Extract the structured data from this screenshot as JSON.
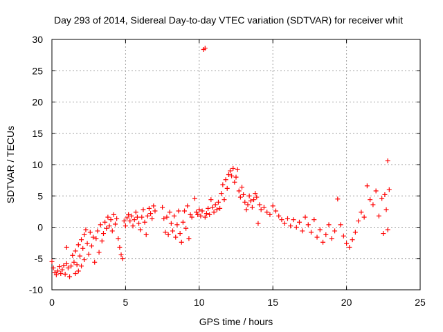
{
  "chart_data": {
    "type": "scatter",
    "title": "Day 293 of 2014, Sidereal Day-to-day VTEC variation (SDTVAR) for receiver whit",
    "xlabel": "GPS time / hours",
    "ylabel": "SDTVAR / TECUs",
    "xlim": [
      0,
      25
    ],
    "ylim": [
      -10,
      30
    ],
    "xticks": [
      "0",
      "5",
      "10",
      "15",
      "20",
      "25"
    ],
    "xtick_values": [
      0,
      5,
      10,
      15,
      20,
      25
    ],
    "yticks": [
      "-10",
      "-5",
      "0",
      "5",
      "10",
      "15",
      "20",
      "25",
      "30"
    ],
    "ytick_values": [
      -10,
      -5,
      0,
      5,
      10,
      15,
      20,
      25,
      30
    ],
    "grid": true,
    "marker": "plus",
    "color": "#ff0000",
    "series": [
      {
        "name": "SDTVAR",
        "points": [
          [
            0.0,
            -5.5
          ],
          [
            0.1,
            -6.5
          ],
          [
            0.2,
            -7.2
          ],
          [
            0.3,
            -7.6
          ],
          [
            0.4,
            -7.0
          ],
          [
            0.5,
            -6.3
          ],
          [
            0.6,
            -7.4
          ],
          [
            0.7,
            -6.8
          ],
          [
            0.8,
            -6.1
          ],
          [
            0.9,
            -7.5
          ],
          [
            1.0,
            -5.8
          ],
          [
            1.0,
            -3.2
          ],
          [
            1.1,
            -6.5
          ],
          [
            1.2,
            -7.9
          ],
          [
            1.3,
            -6.2
          ],
          [
            1.4,
            -4.5
          ],
          [
            1.5,
            -5.6
          ],
          [
            1.6,
            -7.4
          ],
          [
            1.6,
            -3.8
          ],
          [
            1.7,
            -6.0
          ],
          [
            1.8,
            -2.8
          ],
          [
            1.8,
            -7.0
          ],
          [
            1.9,
            -4.6
          ],
          [
            2.0,
            -2.0
          ],
          [
            2.0,
            -6.2
          ],
          [
            2.1,
            -3.4
          ],
          [
            2.2,
            -1.2
          ],
          [
            2.2,
            -5.2
          ],
          [
            2.3,
            -0.4
          ],
          [
            2.4,
            -2.6
          ],
          [
            2.5,
            -4.3
          ],
          [
            2.6,
            -0.8
          ],
          [
            2.7,
            -3.0
          ],
          [
            2.8,
            -1.6
          ],
          [
            2.9,
            -5.6
          ],
          [
            3.0,
            -1.8
          ],
          [
            3.1,
            -0.6
          ],
          [
            3.2,
            -4.0
          ],
          [
            3.3,
            0.4
          ],
          [
            3.4,
            -2.2
          ],
          [
            3.5,
            -1.0
          ],
          [
            3.6,
            0.8
          ],
          [
            3.7,
            -0.2
          ],
          [
            3.8,
            1.6
          ],
          [
            3.9,
            0.2
          ],
          [
            4.0,
            1.2
          ],
          [
            4.1,
            -0.6
          ],
          [
            4.2,
            2.0
          ],
          [
            4.3,
            0.5
          ],
          [
            4.4,
            1.4
          ],
          [
            4.5,
            -1.8
          ],
          [
            4.6,
            -3.2
          ],
          [
            4.7,
            -4.4
          ],
          [
            4.8,
            -5.0
          ],
          [
            4.9,
            1.0
          ],
          [
            5.0,
            0.2
          ],
          [
            5.1,
            1.5
          ],
          [
            5.2,
            2.0
          ],
          [
            5.3,
            1.0
          ],
          [
            5.4,
            1.8
          ],
          [
            5.5,
            0.2
          ],
          [
            5.6,
            1.2
          ],
          [
            5.7,
            2.4
          ],
          [
            5.8,
            1.6
          ],
          [
            5.9,
            0.6
          ],
          [
            6.0,
            -0.4
          ],
          [
            6.1,
            1.6
          ],
          [
            6.2,
            2.8
          ],
          [
            6.3,
            0.8
          ],
          [
            6.4,
            -1.2
          ],
          [
            6.5,
            1.8
          ],
          [
            6.6,
            3.0
          ],
          [
            6.7,
            2.2
          ],
          [
            6.8,
            1.4
          ],
          [
            6.9,
            3.4
          ],
          [
            7.0,
            2.6
          ],
          [
            7.5,
            3.2
          ],
          [
            7.6,
            1.4
          ],
          [
            7.7,
            -0.8
          ],
          [
            7.8,
            1.6
          ],
          [
            7.9,
            -1.2
          ],
          [
            8.0,
            2.4
          ],
          [
            8.1,
            0.6
          ],
          [
            8.2,
            -0.6
          ],
          [
            8.3,
            1.8
          ],
          [
            8.4,
            -1.6
          ],
          [
            8.5,
            0.4
          ],
          [
            8.6,
            2.6
          ],
          [
            8.7,
            -1.0
          ],
          [
            8.8,
            -2.4
          ],
          [
            8.9,
            0.8
          ],
          [
            9.0,
            2.6
          ],
          [
            9.1,
            -0.2
          ],
          [
            9.2,
            3.4
          ],
          [
            9.3,
            -1.8
          ],
          [
            9.4,
            2.0
          ],
          [
            9.5,
            1.6
          ],
          [
            9.7,
            4.6
          ],
          [
            9.8,
            2.4
          ],
          [
            9.9,
            2.0
          ],
          [
            10.0,
            2.8
          ],
          [
            10.1,
            1.8
          ],
          [
            10.2,
            2.6
          ],
          [
            10.3,
            28.4
          ],
          [
            10.4,
            28.6
          ],
          [
            10.4,
            1.6
          ],
          [
            10.5,
            2.2
          ],
          [
            10.6,
            3.0
          ],
          [
            10.7,
            2.0
          ],
          [
            10.8,
            4.4
          ],
          [
            10.9,
            3.2
          ],
          [
            11.0,
            2.4
          ],
          [
            11.1,
            3.6
          ],
          [
            11.2,
            2.8
          ],
          [
            11.3,
            4.0
          ],
          [
            11.4,
            3.0
          ],
          [
            11.5,
            5.4
          ],
          [
            11.6,
            6.8
          ],
          [
            11.7,
            4.4
          ],
          [
            11.8,
            7.6
          ],
          [
            11.9,
            6.2
          ],
          [
            12.0,
            8.4
          ],
          [
            12.1,
            9.0
          ],
          [
            12.2,
            8.2
          ],
          [
            12.3,
            9.4
          ],
          [
            12.4,
            7.2
          ],
          [
            12.5,
            8.0
          ],
          [
            12.6,
            9.2
          ],
          [
            12.7,
            5.8
          ],
          [
            12.8,
            4.8
          ],
          [
            12.9,
            6.4
          ],
          [
            13.0,
            5.2
          ],
          [
            13.1,
            4.0
          ],
          [
            13.2,
            2.8
          ],
          [
            13.3,
            3.6
          ],
          [
            13.4,
            5.0
          ],
          [
            13.5,
            4.2
          ],
          [
            13.6,
            3.2
          ],
          [
            13.7,
            4.4
          ],
          [
            13.8,
            5.4
          ],
          [
            13.9,
            4.8
          ],
          [
            14.0,
            0.6
          ],
          [
            14.1,
            3.6
          ],
          [
            14.2,
            2.8
          ],
          [
            14.4,
            3.2
          ],
          [
            14.6,
            2.4
          ],
          [
            14.8,
            2.0
          ],
          [
            15.0,
            3.4
          ],
          [
            15.2,
            2.6
          ],
          [
            15.4,
            1.8
          ],
          [
            15.6,
            1.2
          ],
          [
            15.8,
            0.6
          ],
          [
            16.0,
            1.4
          ],
          [
            16.2,
            0.2
          ],
          [
            16.4,
            1.2
          ],
          [
            16.6,
            0.0
          ],
          [
            16.8,
            0.8
          ],
          [
            17.0,
            -0.6
          ],
          [
            17.2,
            1.6
          ],
          [
            17.4,
            0.4
          ],
          [
            17.6,
            -0.8
          ],
          [
            17.8,
            1.2
          ],
          [
            18.0,
            -1.6
          ],
          [
            18.2,
            -0.4
          ],
          [
            18.4,
            -2.4
          ],
          [
            18.6,
            -1.2
          ],
          [
            18.8,
            0.4
          ],
          [
            19.0,
            -1.8
          ],
          [
            19.2,
            -0.6
          ],
          [
            19.4,
            4.5
          ],
          [
            19.6,
            0.4
          ],
          [
            19.8,
            -1.4
          ],
          [
            20.0,
            -2.6
          ],
          [
            20.2,
            -3.2
          ],
          [
            20.4,
            -2.0
          ],
          [
            20.6,
            -0.8
          ],
          [
            20.8,
            1.0
          ],
          [
            21.0,
            2.4
          ],
          [
            21.2,
            1.6
          ],
          [
            21.4,
            6.6
          ],
          [
            21.6,
            4.4
          ],
          [
            21.8,
            3.6
          ],
          [
            22.0,
            5.8
          ],
          [
            22.2,
            1.8
          ],
          [
            22.4,
            4.6
          ],
          [
            22.5,
            -1.0
          ],
          [
            22.6,
            5.2
          ],
          [
            22.7,
            2.8
          ],
          [
            22.8,
            10.6
          ],
          [
            22.8,
            -0.4
          ],
          [
            22.9,
            6.0
          ]
        ]
      }
    ]
  }
}
